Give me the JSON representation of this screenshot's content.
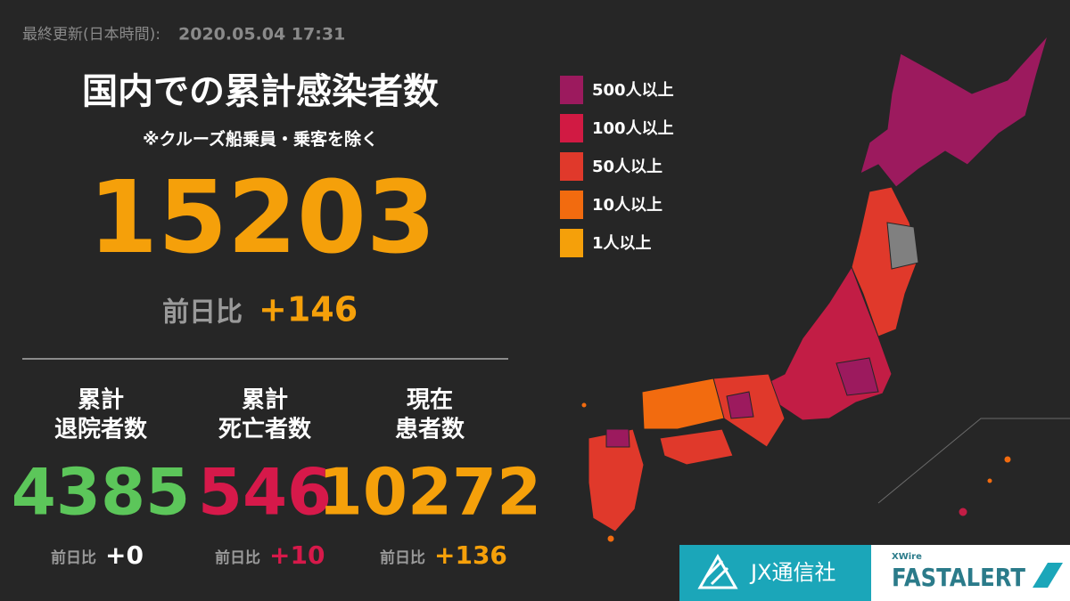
{
  "header": {
    "updated_label": "最終更新(日本時間):",
    "updated": "2020.05.04 17:31"
  },
  "total": {
    "title": "国内での累計感染者数",
    "subtitle": "※クルーズ船乗員・乗客を除く",
    "value": "15203",
    "diff_label": "前日比",
    "diff": "+146"
  },
  "stats": [
    {
      "label": [
        "累計",
        "退院者数"
      ],
      "value": "4385",
      "diff_label": "前日比",
      "diff": "+0",
      "color": "#5cc65a",
      "diff_color": "#ffffff"
    },
    {
      "label": [
        "累計",
        "死亡者数"
      ],
      "value": "546",
      "diff_label": "前日比",
      "diff": "+10",
      "color": "#d6194a",
      "diff_color": "#d6194a"
    },
    {
      "label": [
        "現在",
        "患者数"
      ],
      "value": "10272",
      "diff_label": "前日比",
      "diff": "+136",
      "color": "#f5a00a",
      "diff_color": "#f5a00a"
    }
  ],
  "legend": [
    {
      "label": "500人以上",
      "color": "#9c1a5e"
    },
    {
      "label": "100人以上",
      "color": "#d11a43"
    },
    {
      "label": "50人以上",
      "color": "#e0392b"
    },
    {
      "label": "10人以上",
      "color": "#f26b0f"
    },
    {
      "label": "1人以上",
      "color": "#f5a00a"
    }
  ],
  "footer": {
    "brand": "JX通信社",
    "product_small": "XWire",
    "product": "FASTALERT"
  }
}
